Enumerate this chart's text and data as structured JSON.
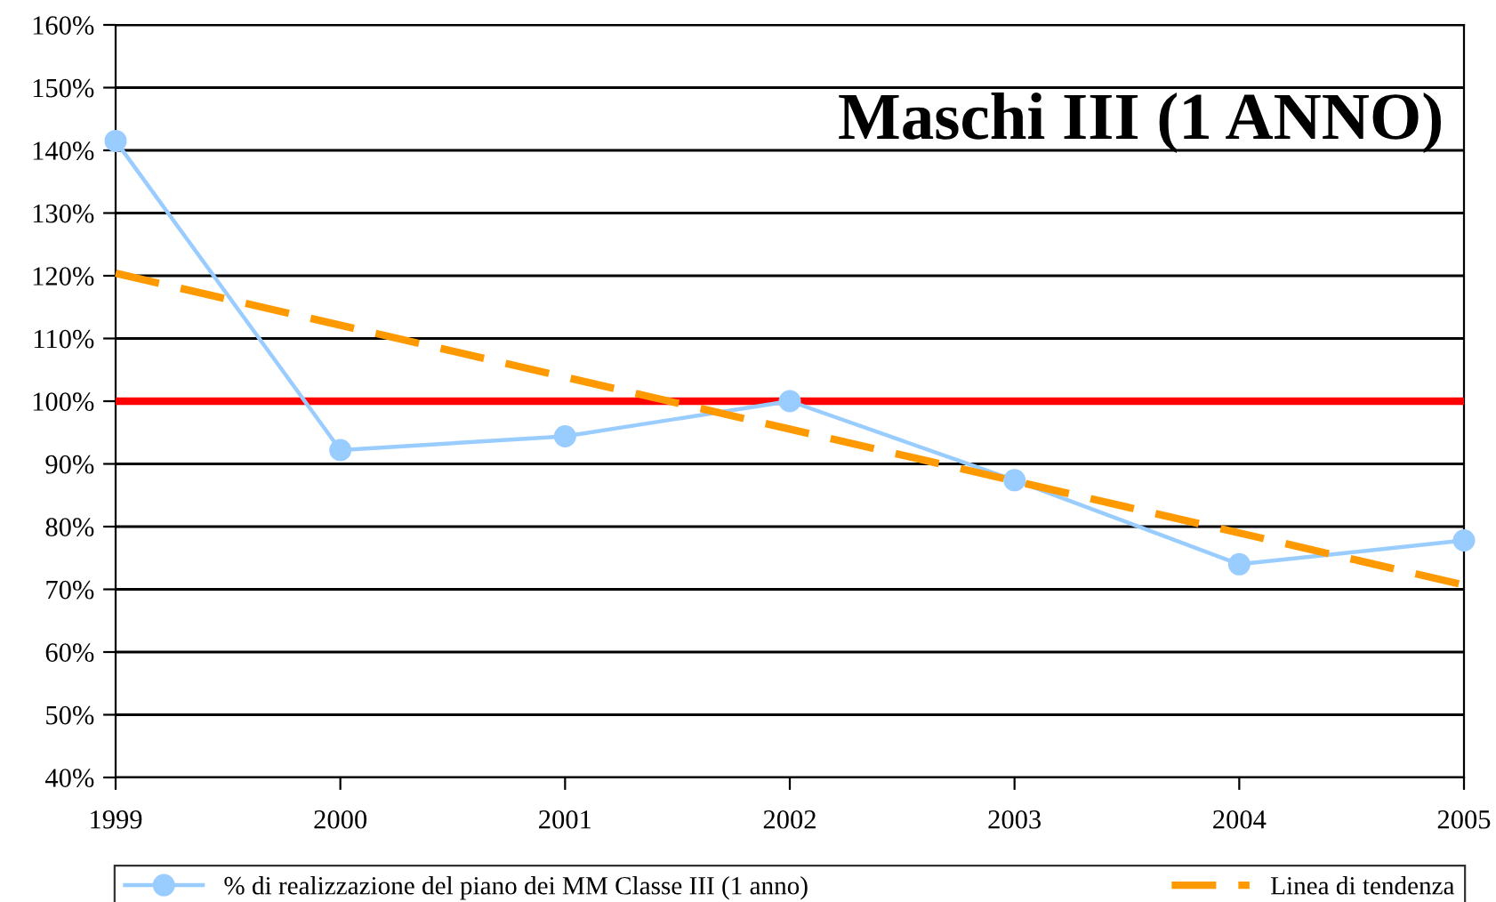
{
  "chart_data": {
    "type": "line",
    "title": "Maschi III (1 ANNO)",
    "x": [
      1999,
      2000,
      2001,
      2002,
      2003,
      2004,
      2005
    ],
    "series": [
      {
        "name": "% di realizzazione del piano dei MM Classe III (1 anno)",
        "color": "#99ccff",
        "values": [
          141.5,
          92.2,
          94.4,
          100,
          87.4,
          74,
          77.8
        ],
        "marker": "circle",
        "line_style": "solid"
      },
      {
        "name": "Linea di tendenza",
        "type": "line",
        "color": "#ff9900",
        "x": [
          1999,
          2005
        ],
        "values": [
          120.4,
          70.7
        ],
        "marker": "none",
        "line_style": "dashed"
      }
    ],
    "xlim": [
      1999,
      2005
    ],
    "xticks": [
      1999,
      2000,
      2001,
      2002,
      2003,
      2004,
      2005
    ],
    "ylim": [
      40,
      160
    ],
    "yticks": [
      {
        "value": 40,
        "label": "40%"
      },
      {
        "value": 50,
        "label": "50%"
      },
      {
        "value": 60,
        "label": "60%"
      },
      {
        "value": 70,
        "label": "70%"
      },
      {
        "value": 80,
        "label": "80%"
      },
      {
        "value": 90,
        "label": "90%"
      },
      {
        "value": 100,
        "label": "100%"
      },
      {
        "value": 110,
        "label": "110%"
      },
      {
        "value": 120,
        "label": "120%"
      },
      {
        "value": 130,
        "label": "130%"
      },
      {
        "value": 140,
        "label": "140%"
      },
      {
        "value": 150,
        "label": "150%"
      },
      {
        "value": 160,
        "label": "160%"
      }
    ],
    "ref_lines": [
      {
        "axis": "y",
        "value": 100,
        "color": "#ff0000"
      }
    ],
    "grid": "y",
    "legend": "bottom"
  }
}
